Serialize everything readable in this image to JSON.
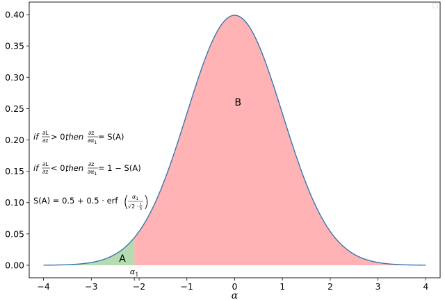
{
  "chart_data": {
    "type": "area",
    "title": "",
    "xlabel": "α",
    "ylabel": "",
    "xlim": [
      -4.3,
      4.3
    ],
    "ylim": [
      -0.02,
      0.42
    ],
    "x_ticks": [
      -4,
      -3,
      -2,
      -1,
      0,
      1,
      2,
      3,
      4
    ],
    "x_tick_labels": [
      "−4",
      "−3",
      "−2",
      "−1",
      "0",
      "1",
      "2",
      "3",
      "4"
    ],
    "y_ticks": [
      0.0,
      0.05,
      0.1,
      0.15,
      0.2,
      0.25,
      0.3,
      0.35,
      0.4
    ],
    "y_tick_labels": [
      "0.00",
      "0.05",
      "0.10",
      "0.15",
      "0.20",
      "0.25",
      "0.30",
      "0.35",
      "0.40"
    ],
    "curve": {
      "kind": "standard normal pdf",
      "mean": 0,
      "std": 1,
      "x_range": [
        -4,
        4
      ],
      "peak": 0.399,
      "color": "#3b75af"
    },
    "alpha1": -2.1,
    "alpha1_label": "α",
    "alpha1_sub": "1",
    "regions": [
      {
        "name": "A",
        "x_range": [
          -4,
          -2.1
        ],
        "color": "#b5dbb0"
      },
      {
        "name": "B",
        "x_range": [
          -2.1,
          4
        ],
        "color": "#ffb3b5"
      }
    ],
    "annotations": {
      "line1_if": "if",
      "line1_num": "∂L",
      "line1_den": "∂z",
      "line1_rel": " > 0, ",
      "line1_then": "then",
      "line1_num2": "∂z",
      "line1_den2": "∂α",
      "line1_den2_sub": "1",
      "line1_rhs": " = S(A)",
      "line2_if": "if",
      "line2_num": "∂L",
      "line2_den": "∂z",
      "line2_rel": " < 0, ",
      "line2_then": "then",
      "line2_num2": "∂z",
      "line2_den2": "∂α",
      "line2_den2_sub": "1",
      "line2_rhs": " = 1 − S(A)",
      "line3_lhs": "S(A) = 0.5 + 0.5 · erf",
      "line3_num": "α",
      "line3_num_sub": "1",
      "line3_den": "√2 · ",
      "line3_den_frac_num": "1",
      "line3_den_frac_den": "5"
    }
  }
}
